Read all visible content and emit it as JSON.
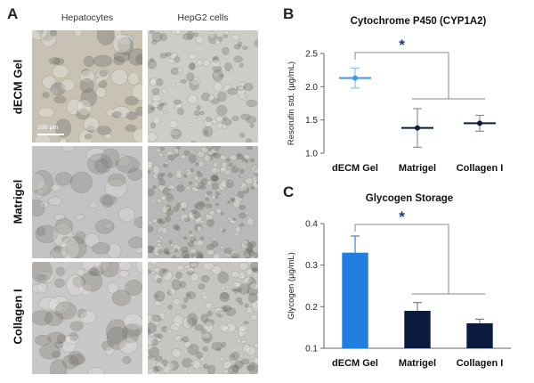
{
  "panel_a": {
    "letter": "A",
    "columns": [
      "Hepatocytes",
      "HepG2 cells"
    ],
    "rows": [
      "dECM Gel",
      "Matrigel",
      "Collagen I"
    ],
    "scale_bar": "100 µm"
  },
  "chart_data": [
    {
      "type": "scatter",
      "panel_letter": "B",
      "title": "Cytochrome P450 (CYP1A2)",
      "ylabel": "Resorufin std. (µg/mL)",
      "xlabel": "",
      "categories": [
        "dECM Gel",
        "Matrigel",
        "Collagen I"
      ],
      "values": [
        2.13,
        1.38,
        1.45
      ],
      "errors": [
        0.15,
        0.29,
        0.12
      ],
      "colors": [
        "#3b9ee3",
        "#0b1a3f",
        "#0b1a3f"
      ],
      "ylim": [
        1.0,
        2.5
      ],
      "yticks": [
        "1.0",
        "1.5",
        "2.0",
        "2.5"
      ],
      "significance": "*",
      "grid": false,
      "legend": "none"
    },
    {
      "type": "bar",
      "panel_letter": "C",
      "title": "Glycogen Storage",
      "ylabel": "Glycogen (µg/mL)",
      "xlabel": "",
      "categories": [
        "dECM Gel",
        "Matrigel",
        "Collagen I"
      ],
      "values": [
        0.33,
        0.19,
        0.16
      ],
      "errors": [
        0.04,
        0.02,
        0.01
      ],
      "colors": [
        "#1f7ee0",
        "#0b1a3f",
        "#0b1a3f"
      ],
      "ylim": [
        0.1,
        0.4
      ],
      "yticks": [
        "0.1",
        "0.2",
        "0.3",
        "0.4"
      ],
      "significance": "*",
      "grid": false,
      "legend": "none"
    }
  ]
}
